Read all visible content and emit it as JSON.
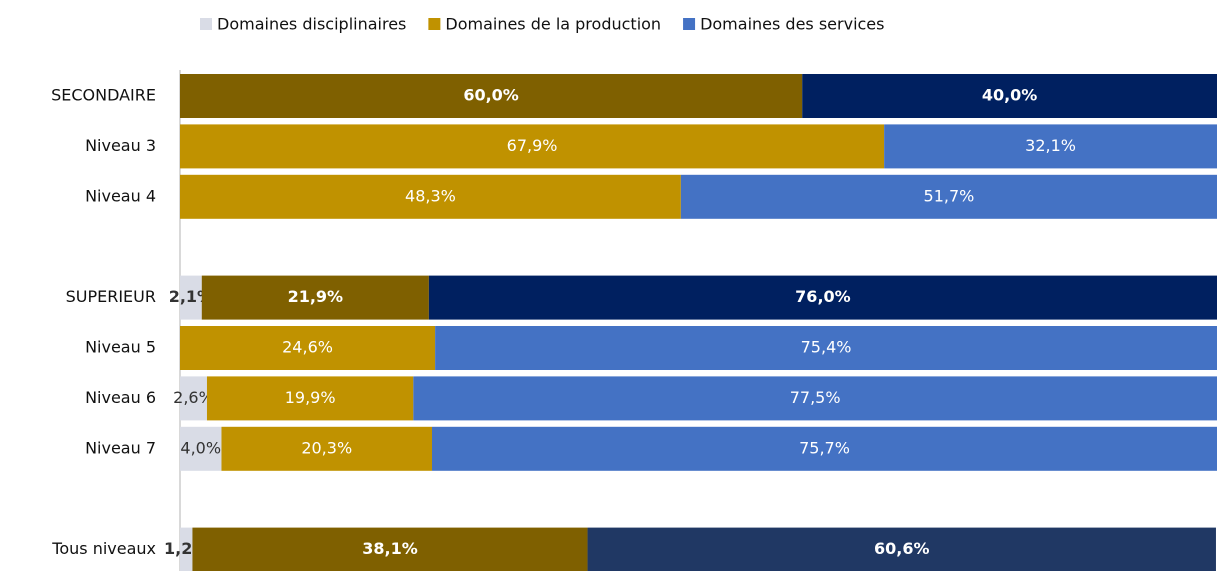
{
  "chart_data": {
    "type": "stacked-barh",
    "categories": [
      "SECONDAIRE",
      "Niveau 3",
      "Niveau 4",
      null,
      "SUPERIEUR",
      "Niveau 5",
      "Niveau 6",
      "Niveau 7",
      null,
      "Tous niveaux"
    ],
    "emphasis": [
      true,
      false,
      false,
      null,
      true,
      false,
      false,
      false,
      null,
      true
    ],
    "series": [
      {
        "name": "Domaines disciplinaires",
        "color": "#d9dce6",
        "label_color": "#333333",
        "colors": [
          "#d9dce6",
          "#d9dce6",
          "#d9dce6",
          null,
          "#d9dce6",
          "#d9dce6",
          "#d9dce6",
          "#d9dce6",
          null,
          "#d9dce6"
        ],
        "values": [
          0,
          0,
          0,
          null,
          2.1,
          0,
          2.6,
          4.0,
          null,
          1.2
        ],
        "value_labels": [
          null,
          null,
          null,
          null,
          "2,1%",
          null,
          "2,6%",
          "4,0%",
          null,
          "1,2%"
        ]
      },
      {
        "name": "Domaines de la production",
        "color": "#c09200",
        "label_color": "#ffffff",
        "colors": [
          "#7f6000",
          "#c09200",
          "#c09200",
          null,
          "#7f6000",
          "#c09200",
          "#c09200",
          "#c09200",
          null,
          "#7f6000"
        ],
        "values": [
          60.0,
          67.9,
          48.3,
          null,
          21.9,
          24.6,
          19.9,
          20.3,
          null,
          38.1
        ],
        "value_labels": [
          "60,0%",
          "67,9%",
          "48,3%",
          null,
          "21,9%",
          "24,6%",
          "19,9%",
          "20,3%",
          null,
          "38,1%"
        ]
      },
      {
        "name": "Domaines des services",
        "color": "#4472c4",
        "label_color": "#ffffff",
        "colors": [
          "#002060",
          "#4472c4",
          "#4472c4",
          null,
          "#002060",
          "#4472c4",
          "#4472c4",
          "#4472c4",
          null,
          "#203864"
        ],
        "values": [
          40.0,
          32.1,
          51.7,
          null,
          76.0,
          75.4,
          77.5,
          75.7,
          null,
          60.6
        ],
        "value_labels": [
          "40,0%",
          "32,1%",
          "51,7%",
          null,
          "76,0%",
          "75,4%",
          "77,5%",
          "75,7%",
          null,
          "60,6%"
        ]
      }
    ],
    "xlim": [
      0,
      100
    ]
  }
}
